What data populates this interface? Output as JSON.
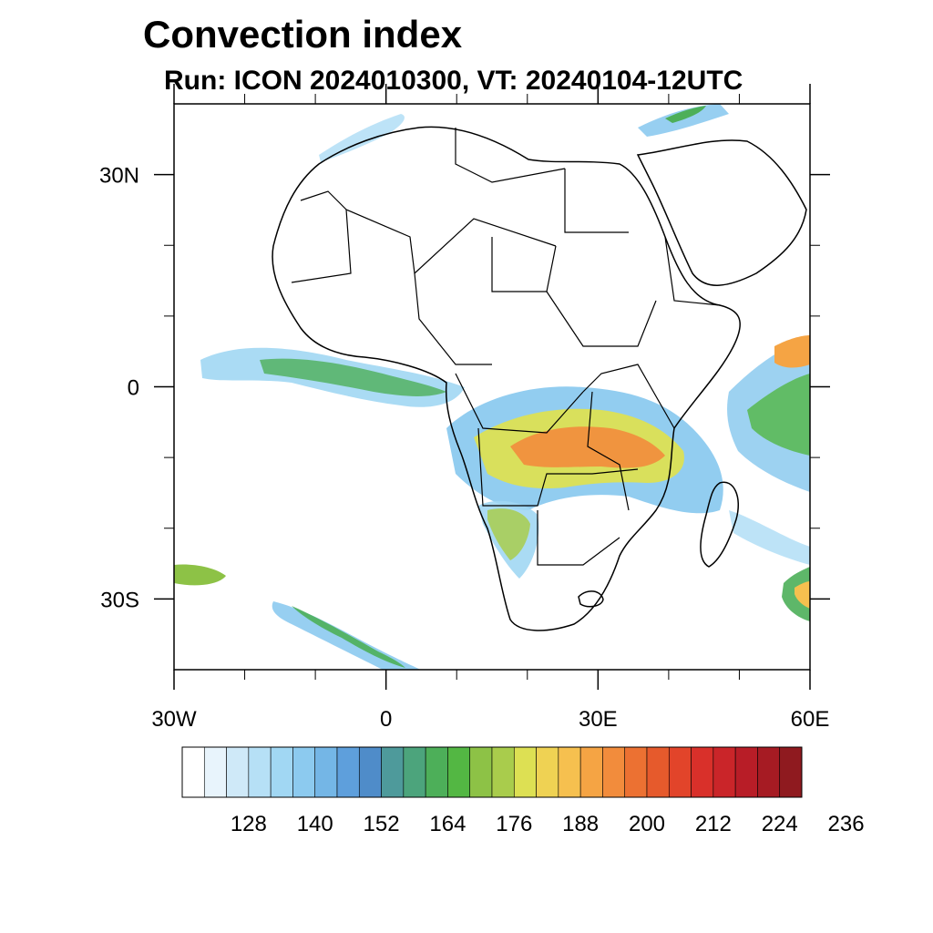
{
  "title": "Convection index",
  "subtitle": "Run: ICON 2024010300,  VT: 20240104-12UTC",
  "map": {
    "extent": {
      "lon": [
        -30,
        60
      ],
      "lat": [
        -40,
        40
      ]
    },
    "lon_labels": [
      {
        "lon": -30,
        "text": "30W"
      },
      {
        "lon": 0,
        "text": "0"
      },
      {
        "lon": 30,
        "text": "30E"
      },
      {
        "lon": 60,
        "text": "60E"
      }
    ],
    "lat_labels": [
      {
        "lat": 30,
        "text": "30N"
      },
      {
        "lat": 0,
        "text": "0"
      },
      {
        "lat": -30,
        "text": "30S"
      }
    ],
    "minor_lon": [
      -20,
      -10,
      10,
      20,
      40,
      50
    ],
    "minor_lat": [
      20,
      10,
      -10,
      -20
    ]
  },
  "colorbar": {
    "colors": [
      "#ffffff",
      "#e8f4fc",
      "#cfe9f8",
      "#b6e0f6",
      "#a1d7f3",
      "#8ccaef",
      "#74b6e6",
      "#5e9fdc",
      "#4f8cc9",
      "#4e9a9b",
      "#4ca47c",
      "#4daf59",
      "#53b743",
      "#8dc246",
      "#a9cc4c",
      "#dde053",
      "#efd253",
      "#f6c04f",
      "#f5a444",
      "#f28c3c",
      "#ec7132",
      "#e65a2c",
      "#e2442a",
      "#d9302a",
      "#ca2529",
      "#b81d27",
      "#a61b23",
      "#8f1a1f"
    ],
    "labels": [
      "128",
      "140",
      "152",
      "164",
      "176",
      "188",
      "200",
      "212",
      "224",
      "236"
    ]
  }
}
